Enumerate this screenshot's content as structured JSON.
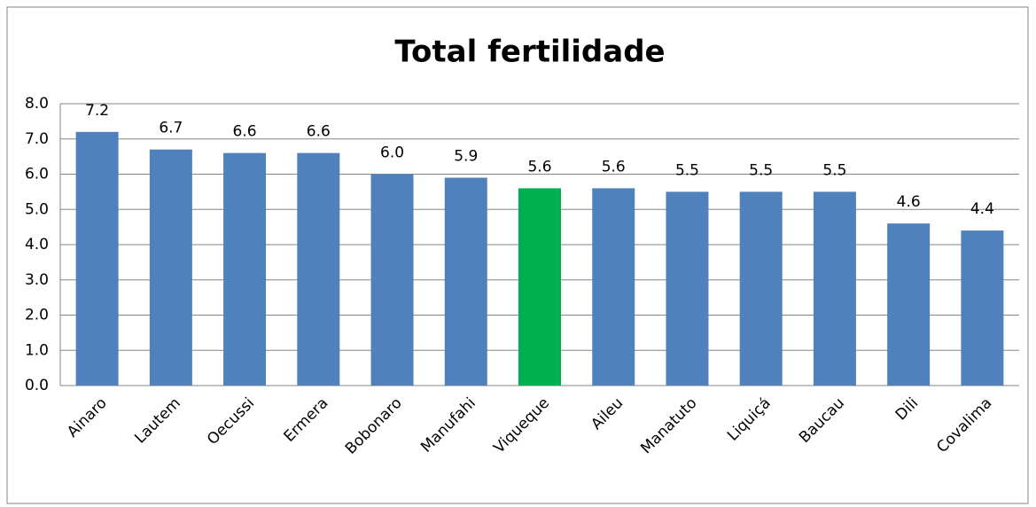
{
  "chart_data": {
    "type": "bar",
    "title": "Total fertilidade",
    "categories": [
      "Ainaro",
      "Lautem",
      "Oecussi",
      "Ermera",
      "Bobonaro",
      "Manufahi",
      "Viqueque",
      "Aileu",
      "Manatuto",
      "Liquiçá",
      "Baucau",
      "Dili",
      "Covalima"
    ],
    "values": [
      7.2,
      6.7,
      6.6,
      6.6,
      6.0,
      5.9,
      5.6,
      5.6,
      5.5,
      5.5,
      5.5,
      4.6,
      4.4
    ],
    "value_labels": [
      "7.2",
      "6.7",
      "6.6",
      "6.6",
      "6.0",
      "5.9",
      "5.6",
      "5.6",
      "5.5",
      "5.5",
      "5.5",
      "4.6",
      "4.4"
    ],
    "colors": [
      "#4f81bd",
      "#4f81bd",
      "#4f81bd",
      "#4f81bd",
      "#4f81bd",
      "#4f81bd",
      "#00b050",
      "#4f81bd",
      "#4f81bd",
      "#4f81bd",
      "#4f81bd",
      "#4f81bd",
      "#4f81bd"
    ],
    "ylim": [
      0,
      8
    ],
    "yticks": [
      {
        "value": 0,
        "label": "0.0"
      },
      {
        "value": 1,
        "label": "1.0"
      },
      {
        "value": 2,
        "label": "2.0"
      },
      {
        "value": 3,
        "label": "3.0"
      },
      {
        "value": 4,
        "label": "4.0"
      },
      {
        "value": 5,
        "label": "5.0"
      },
      {
        "value": 6,
        "label": "6.0"
      },
      {
        "value": 7,
        "label": "7.0"
      },
      {
        "value": 8,
        "label": "8.0"
      }
    ],
    "grid": true
  }
}
